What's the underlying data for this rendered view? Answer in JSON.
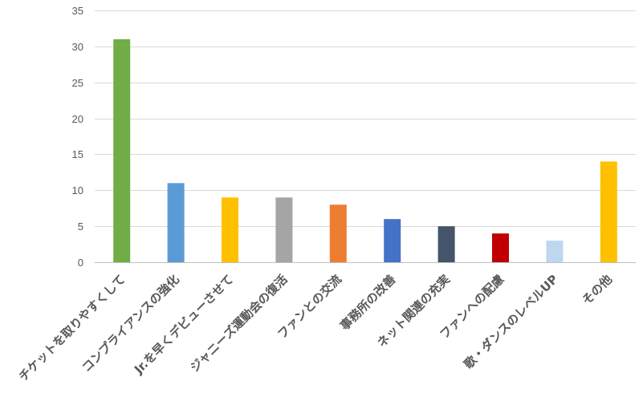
{
  "chart_data": {
    "type": "bar",
    "title": "",
    "xlabel": "",
    "ylabel": "",
    "ylim": [
      0,
      35
    ],
    "yticks": [
      0,
      5,
      10,
      15,
      20,
      25,
      30,
      35
    ],
    "grid": true,
    "legend": "none",
    "categories": [
      "チケットを取りやすくして",
      "コンプライアンスの強化",
      "Jr.を早くデビューさせて",
      "ジャニーズ運動会の復活",
      "ファンとの交流",
      "事務所の改善",
      "ネット関連の充実",
      "ファンへの配慮",
      "歌・ダンスのレベルUP",
      "その他"
    ],
    "values": [
      31,
      11,
      9,
      9,
      8,
      6,
      5,
      4,
      3,
      14
    ],
    "colors": [
      "#70ad47",
      "#5b9bd5",
      "#ffc000",
      "#a5a5a5",
      "#ed7d31",
      "#4472c4",
      "#44546a",
      "#c00000",
      "#bdd7ee",
      "#ffc000"
    ]
  }
}
